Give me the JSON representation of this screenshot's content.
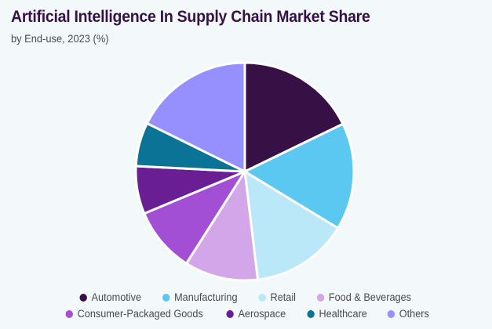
{
  "header": {
    "title": "Artificial Intelligence In Supply Chain Market Share",
    "subtitle": "by End-use, 2023 (%)"
  },
  "colors": {
    "background": "#F3F8FB",
    "title": "#371146",
    "text": "#4A4A4A",
    "slice_separator": "#FFFFFF"
  },
  "legend": {
    "rows": [
      [
        {
          "label": "Automotive",
          "color": "#371146"
        },
        {
          "label": "Manufacturing",
          "color": "#5BC8F2"
        },
        {
          "label": "Retail",
          "color": "#BBE8F8"
        },
        {
          "label": "Food & Beverages",
          "color": "#D2A6E8"
        }
      ],
      [
        {
          "label": "Consumer-Packaged Goods",
          "color": "#A24FD6"
        },
        {
          "label": "Aerospace",
          "color": "#6A1E94"
        },
        {
          "label": "Healthcare",
          "color": "#0B7396"
        },
        {
          "label": "Others",
          "color": "#9590FE"
        }
      ]
    ]
  },
  "chart_data": {
    "type": "pie",
    "title": "Artificial Intelligence In Supply Chain Market Share",
    "subtitle": "by End-use, 2023 (%)",
    "categories": [
      "Automotive",
      "Manufacturing",
      "Retail",
      "Food & Beverages",
      "Consumer-Packaged Goods",
      "Aerospace",
      "Healthcare",
      "Others"
    ],
    "values": [
      17.8,
      15.9,
      14.4,
      10.9,
      9.7,
      7.1,
      6.5,
      17.7
    ],
    "colors": [
      "#371146",
      "#5BC8F2",
      "#BBE8F8",
      "#D2A6E8",
      "#A24FD6",
      "#6A1E94",
      "#0B7396",
      "#9590FE"
    ],
    "start_angle": "12 o'clock",
    "direction": "clockwise",
    "data_labels": false,
    "legend_position": "bottom",
    "unit": "%"
  }
}
